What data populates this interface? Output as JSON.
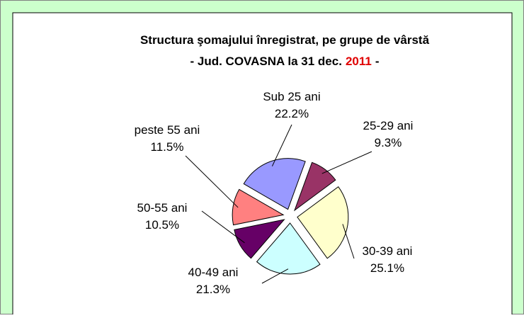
{
  "chart_data": {
    "type": "pie",
    "title": "Structura şomajului înregistrat, pe grupe de vârstă",
    "subtitle": [
      "- Jud. COVASNA la 31 dec.",
      "2011",
      "-"
    ],
    "categories": [
      "Sub 25 ani",
      "25-29 ani",
      "30-39 ani",
      "40-49 ani",
      "50-55 ani",
      "peste 55 ani"
    ],
    "values": [
      22.2,
      9.3,
      25.1,
      21.3,
      10.5,
      11.5
    ],
    "value_labels": [
      "22.2%",
      "9.3%",
      "25.1%",
      "21.3%",
      "10.5%",
      "11.5%"
    ],
    "colors": [
      "#9999ff",
      "#993366",
      "#ffffcc",
      "#ccffff",
      "#660066",
      "#ff8080"
    ]
  }
}
